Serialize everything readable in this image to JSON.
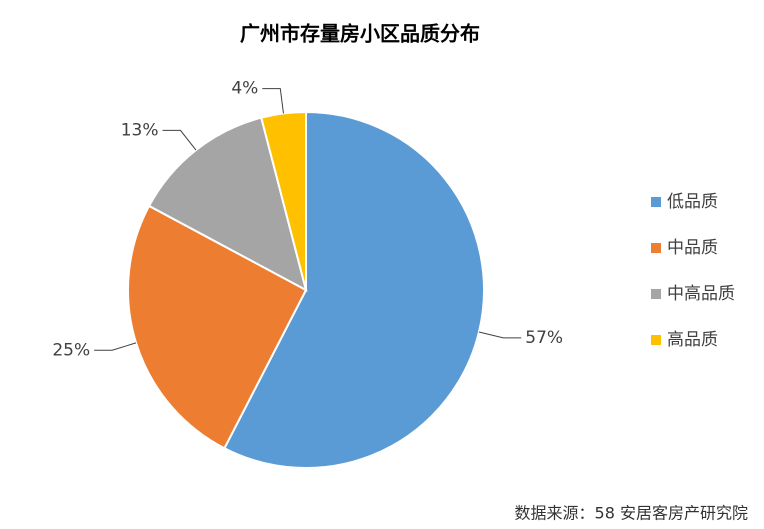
{
  "chart_data": {
    "type": "pie",
    "title": "广州市存量房小区品质分布",
    "categories": [
      "低品质",
      "中品质",
      "中高品质",
      "高品质"
    ],
    "values": [
      57,
      25,
      13,
      4
    ],
    "value_labels": [
      "57%",
      "25%",
      "13%",
      "4%"
    ],
    "colors": [
      "#5b9bd5",
      "#ed7d31",
      "#a5a5a5",
      "#ffc000"
    ],
    "legend": "right",
    "source": "数据来源：58 安居客房产研究院"
  }
}
